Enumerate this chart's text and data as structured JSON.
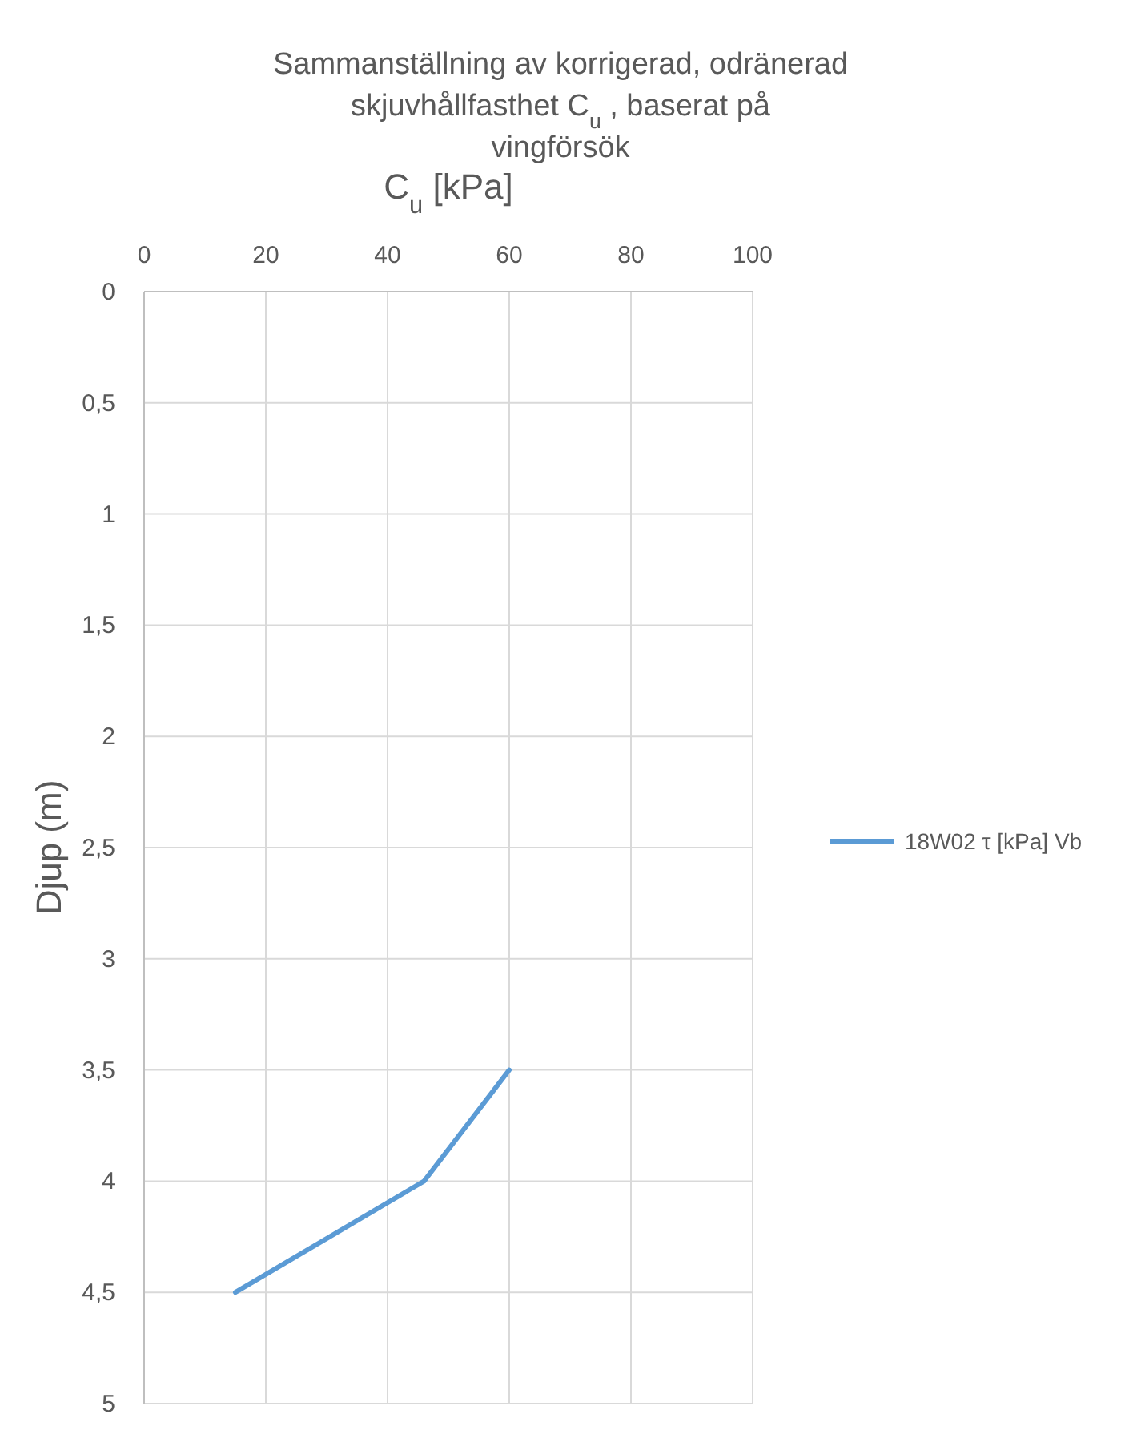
{
  "chart_data": {
    "type": "line",
    "title": "Sammanställning av korrigerad, odränerad skjuvhållfasthet C$_{u}$ , baserat på vingförsök",
    "xlabel": "C$_{u}$ [kPa]",
    "ylabel": "Djup (m)",
    "xlim": [
      0,
      100
    ],
    "xticks": [
      0,
      20,
      40,
      60,
      80,
      100
    ],
    "ylim": [
      5,
      0
    ],
    "yticks": [
      0,
      {
        "value": 0.5,
        "label": "0,5"
      },
      1,
      {
        "value": 1.5,
        "label": "1,5"
      },
      2,
      {
        "value": 2.5,
        "label": "2,5"
      },
      3,
      {
        "value": 3.5,
        "label": "3,5"
      },
      4,
      {
        "value": 4.5,
        "label": "4,5"
      },
      5
    ],
    "grid": true,
    "legend": "right",
    "marker": "none",
    "line_style": "solid",
    "series": [
      {
        "name": "18W02 τ [kPa] Vb",
        "color": "#5b9bd5",
        "x": [
          60,
          46,
          15
        ],
        "values": [
          3.5,
          4,
          4.5
        ]
      }
    ]
  }
}
